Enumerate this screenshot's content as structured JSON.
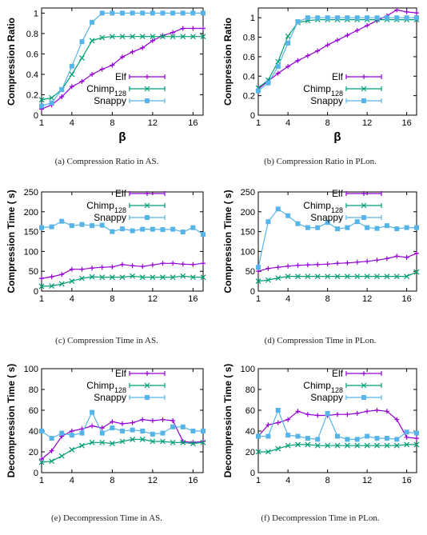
{
  "chart_data": [
    {
      "id": "a",
      "type": "line",
      "caption": "(a)  Compression Ratio in AS.",
      "ylabel": "Compression Ratio",
      "xlabel": "β",
      "xlim": [
        1,
        17
      ],
      "ylim": [
        0,
        1.05
      ],
      "xticks": [
        1,
        4,
        8,
        12,
        16
      ],
      "yticks": [
        0,
        0.2,
        0.4,
        0.6,
        0.8,
        1
      ],
      "yticklabels": [
        "0",
        "0.2",
        "0.4",
        "0.6",
        "0.8",
        "1"
      ],
      "legend_position": "center-right",
      "x": [
        1,
        2,
        3,
        4,
        5,
        6,
        7,
        8,
        9,
        10,
        11,
        12,
        13,
        14,
        15,
        16,
        17
      ],
      "series": [
        {
          "name": "Elf",
          "values": [
            0.06,
            0.1,
            0.18,
            0.28,
            0.33,
            0.4,
            0.45,
            0.49,
            0.57,
            0.62,
            0.66,
            0.73,
            0.78,
            0.81,
            0.85,
            0.85,
            0.85
          ]
        },
        {
          "name": "Chimp128",
          "values": [
            0.15,
            0.17,
            0.25,
            0.4,
            0.56,
            0.73,
            0.76,
            0.77,
            0.77,
            0.77,
            0.77,
            0.77,
            0.77,
            0.77,
            0.77,
            0.77,
            0.77
          ]
        },
        {
          "name": "Snappy",
          "values": [
            0.09,
            0.12,
            0.25,
            0.48,
            0.72,
            0.91,
            1.0,
            1.0,
            1.0,
            1.0,
            1.0,
            1.0,
            1.0,
            1.0,
            1.0,
            1.0,
            1.0
          ]
        }
      ]
    },
    {
      "id": "b",
      "type": "line",
      "caption": "(b)  Compression Ratio in PLon.",
      "ylabel": "Compression Ratio",
      "xlabel": "β",
      "xlim": [
        1,
        17
      ],
      "ylim": [
        0,
        1.1
      ],
      "xticks": [
        1,
        4,
        8,
        12,
        16
      ],
      "yticks": [
        0,
        0.2,
        0.4,
        0.6,
        0.8,
        1
      ],
      "yticklabels": [
        "0",
        "0.2",
        "0.4",
        "0.6",
        "0.8",
        "1"
      ],
      "legend_position": "center-right",
      "x": [
        1,
        2,
        3,
        4,
        5,
        6,
        7,
        8,
        9,
        10,
        11,
        12,
        13,
        14,
        15,
        16,
        17
      ],
      "series": [
        {
          "name": "Elf",
          "values": [
            0.27,
            0.35,
            0.43,
            0.5,
            0.56,
            0.61,
            0.66,
            0.72,
            0.77,
            0.82,
            0.87,
            0.92,
            0.97,
            1.02,
            1.08,
            1.06,
            1.05
          ]
        },
        {
          "name": "Chimp128",
          "values": [
            0.28,
            0.36,
            0.55,
            0.81,
            0.95,
            0.97,
            0.98,
            0.98,
            0.98,
            0.98,
            0.98,
            0.98,
            0.98,
            0.98,
            0.98,
            0.98,
            0.98
          ]
        },
        {
          "name": "Snappy",
          "values": [
            0.25,
            0.33,
            0.5,
            0.74,
            0.96,
            1.0,
            1.0,
            1.0,
            1.0,
            1.0,
            1.0,
            1.0,
            1.0,
            1.0,
            1.0,
            1.0,
            1.0
          ]
        }
      ]
    },
    {
      "id": "c",
      "type": "line",
      "caption": "(c)  Compression Time in AS.",
      "ylabel": "Compression Time (  s)",
      "xlabel": "",
      "xlim": [
        1,
        17
      ],
      "ylim": [
        0,
        250
      ],
      "xticks": [
        1,
        4,
        8,
        12,
        16
      ],
      "yticks": [
        0,
        50,
        100,
        150,
        200,
        250
      ],
      "yticklabels": [
        "0",
        "50",
        "100",
        "150",
        "200",
        "250"
      ],
      "legend_position": "top-right",
      "x": [
        1,
        2,
        3,
        4,
        5,
        6,
        7,
        8,
        9,
        10,
        11,
        12,
        13,
        14,
        15,
        16,
        17
      ],
      "series": [
        {
          "name": "Elf",
          "values": [
            32,
            36,
            42,
            55,
            55,
            58,
            60,
            61,
            67,
            64,
            62,
            66,
            70,
            70,
            68,
            67,
            70
          ]
        },
        {
          "name": "Chimp128",
          "values": [
            12,
            13,
            18,
            25,
            32,
            36,
            35,
            35,
            35,
            38,
            35,
            35,
            35,
            35,
            38,
            35,
            35
          ]
        },
        {
          "name": "Snappy",
          "values": [
            160,
            162,
            176,
            165,
            168,
            165,
            166,
            150,
            157,
            152,
            156,
            156,
            155,
            156,
            149,
            160,
            143
          ]
        }
      ]
    },
    {
      "id": "d",
      "type": "line",
      "caption": "(d)  Compression Time in PLon.",
      "ylabel": "Compression Time (  s)",
      "xlabel": "",
      "xlim": [
        1,
        17
      ],
      "ylim": [
        0,
        250
      ],
      "xticks": [
        1,
        4,
        8,
        12,
        16
      ],
      "yticks": [
        0,
        50,
        100,
        150,
        200,
        250
      ],
      "yticklabels": [
        "0",
        "50",
        "100",
        "150",
        "200",
        "250"
      ],
      "legend_position": "top-right",
      "x": [
        1,
        2,
        3,
        4,
        5,
        6,
        7,
        8,
        9,
        10,
        11,
        12,
        13,
        14,
        15,
        16,
        17
      ],
      "series": [
        {
          "name": "Elf",
          "values": [
            50,
            57,
            60,
            63,
            65,
            66,
            67,
            68,
            70,
            71,
            73,
            75,
            78,
            82,
            88,
            85,
            95
          ]
        },
        {
          "name": "Chimp128",
          "values": [
            25,
            28,
            33,
            37,
            37,
            37,
            37,
            37,
            37,
            37,
            37,
            37,
            37,
            37,
            37,
            37,
            48
          ]
        },
        {
          "name": "Snappy",
          "values": [
            60,
            175,
            207,
            190,
            170,
            160,
            160,
            173,
            157,
            160,
            175,
            160,
            158,
            165,
            157,
            160,
            160
          ]
        }
      ]
    },
    {
      "id": "e",
      "type": "line",
      "caption": "(e)  Decompression Time in AS.",
      "ylabel": "Decompression Time (  s)",
      "xlabel": "",
      "xlim": [
        1,
        17
      ],
      "ylim": [
        0,
        100
      ],
      "xticks": [
        1,
        4,
        8,
        12,
        16
      ],
      "yticks": [
        0,
        20,
        40,
        60,
        80,
        100
      ],
      "yticklabels": [
        "0",
        "20",
        "40",
        "60",
        "80",
        "100"
      ],
      "legend_position": "top-right",
      "x": [
        1,
        2,
        3,
        4,
        5,
        6,
        7,
        8,
        9,
        10,
        11,
        12,
        13,
        14,
        15,
        16,
        17
      ],
      "series": [
        {
          "name": "Elf",
          "values": [
            13,
            21,
            35,
            40,
            42,
            45,
            43,
            49,
            47,
            48,
            51,
            50,
            51,
            50,
            30,
            29,
            30
          ]
        },
        {
          "name": "Chimp128",
          "values": [
            10,
            11,
            16,
            22,
            26,
            29,
            29,
            28,
            30,
            32,
            32,
            30,
            30,
            29,
            29,
            28,
            29
          ]
        },
        {
          "name": "Snappy",
          "values": [
            40,
            33,
            38,
            36,
            38,
            58,
            38,
            43,
            40,
            41,
            40,
            37,
            38,
            44,
            44,
            40,
            40
          ]
        }
      ]
    },
    {
      "id": "f",
      "type": "line",
      "caption": "(f)  Decompression Time in PLon.",
      "ylabel": "Decompression Time (  s)",
      "xlabel": "",
      "xlim": [
        1,
        17
      ],
      "ylim": [
        0,
        100
      ],
      "xticks": [
        1,
        4,
        8,
        12,
        16
      ],
      "yticks": [
        0,
        20,
        40,
        60,
        80,
        100
      ],
      "yticklabels": [
        "0",
        "20",
        "40",
        "60",
        "80",
        "100"
      ],
      "legend_position": "top-right",
      "x": [
        1,
        2,
        3,
        4,
        5,
        6,
        7,
        8,
        9,
        10,
        11,
        12,
        13,
        14,
        15,
        16,
        17
      ],
      "series": [
        {
          "name": "Elf",
          "values": [
            35,
            46,
            48,
            51,
            59,
            56,
            55,
            55,
            56,
            56,
            57,
            59,
            60,
            59,
            51,
            34,
            33
          ]
        },
        {
          "name": "Chimp128",
          "values": [
            20,
            20,
            23,
            26,
            27,
            27,
            26,
            26,
            26,
            26,
            26,
            26,
            26,
            26,
            26,
            27,
            27
          ]
        },
        {
          "name": "Snappy",
          "values": [
            35,
            35,
            60,
            36,
            35,
            33,
            32,
            57,
            35,
            32,
            32,
            35,
            33,
            33,
            32,
            39,
            38
          ]
        }
      ]
    }
  ],
  "colors": {
    "Elf": "#9400D3",
    "Chimp128": "#009E73",
    "Snappy": "#56B4E9"
  },
  "markers": {
    "Elf": "plus-marker",
    "Chimp128": "x-marker",
    "Snappy": "square-marker"
  }
}
